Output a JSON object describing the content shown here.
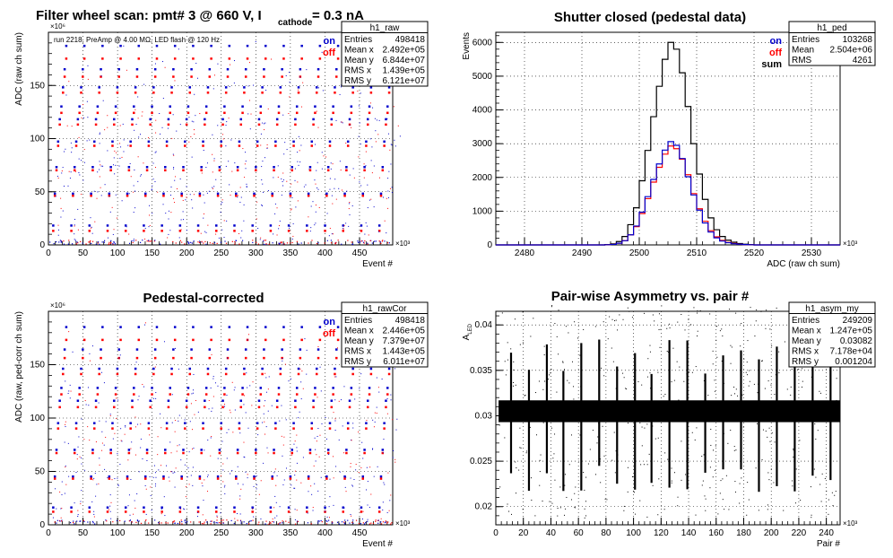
{
  "chart_data": [
    {
      "id": "raw",
      "type": "scatter",
      "title": "Filter wheel scan: pmt#   3 @   660 V, I",
      "title_sub": "cathode",
      "title_tail": " = 0.3 nA",
      "annotation": "run 2218, PreAmp @ 4.00 MΩ, LED flash @  120 Hz",
      "xlabel": "Event #",
      "ylabel": "ADC (raw ch sum)",
      "x_exponent": "×10³",
      "y_exponent": "×10⁶",
      "xlim": [
        0,
        498
      ],
      "ylim": [
        0,
        200
      ],
      "xticks": [
        0,
        50,
        100,
        150,
        200,
        250,
        300,
        350,
        400,
        450
      ],
      "yticks": [
        0,
        50,
        100,
        150
      ],
      "grid": true,
      "legend": [
        {
          "label": "on",
          "color": "#0000cc"
        },
        {
          "label": "off",
          "color": "#ff0000"
        }
      ],
      "stats_box": {
        "name": "h1_raw",
        "rows": [
          [
            "Entries",
            "498418"
          ],
          [
            "Mean x",
            "2.492e+05"
          ],
          [
            "Mean y",
            "6.844e+07"
          ],
          [
            "RMS x",
            "1.439e+05"
          ],
          [
            "RMS y",
            "6.121e+07"
          ]
        ]
      },
      "levels_on": [
        0,
        18,
        48,
        73,
        97,
        118,
        130,
        148,
        165,
        187
      ],
      "levels_off": [
        0,
        13,
        46,
        70,
        93,
        113,
        124,
        143,
        158,
        175
      ]
    },
    {
      "id": "ped",
      "type": "histogram",
      "title": "Shutter closed (pedestal data)",
      "xlabel": "ADC (raw ch sum)",
      "ylabel": "Events",
      "x_exponent": "×10³",
      "xlim": [
        2475,
        2535
      ],
      "ylim": [
        0,
        6300
      ],
      "xticks": [
        2480,
        2490,
        2500,
        2510,
        2520,
        2530
      ],
      "yticks": [
        0,
        1000,
        2000,
        3000,
        4000,
        5000,
        6000
      ],
      "grid": true,
      "legend": [
        {
          "label": "on",
          "color": "#0000cc"
        },
        {
          "label": "off",
          "color": "#ff0000"
        },
        {
          "label": "sum",
          "color": "#000000"
        }
      ],
      "stats_box": {
        "name": "h1_ped",
        "rows": [
          [
            "Entries",
            "103268"
          ],
          [
            "Mean",
            "2.504e+06"
          ],
          [
            "RMS",
            "4261"
          ]
        ]
      },
      "bin_lo": 2490,
      "bin_width": 1,
      "sum": [
        0,
        0,
        0,
        0,
        10,
        30,
        100,
        250,
        600,
        1100,
        1900,
        2800,
        3800,
        4700,
        5500,
        6000,
        5800,
        5100,
        4100,
        3000,
        2100,
        1350,
        800,
        450,
        250,
        140,
        80,
        40,
        20,
        10,
        0
      ],
      "on": [
        0,
        0,
        0,
        0,
        5,
        15,
        50,
        125,
        300,
        560,
        970,
        1430,
        1940,
        2400,
        2810,
        3060,
        2950,
        2560,
        2020,
        1480,
        1030,
        650,
        380,
        210,
        115,
        65,
        35,
        20,
        10,
        5,
        0
      ],
      "off": [
        0,
        0,
        0,
        0,
        5,
        15,
        50,
        125,
        300,
        540,
        930,
        1370,
        1860,
        2300,
        2690,
        2930,
        2850,
        2540,
        2080,
        1520,
        1070,
        700,
        420,
        240,
        135,
        75,
        45,
        20,
        10,
        5,
        0
      ]
    },
    {
      "id": "rawcor",
      "type": "scatter",
      "title": "Pedestal-corrected",
      "xlabel": "Event #",
      "ylabel": "ADC (raw, ped-corr ch sum)",
      "x_exponent": "×10³",
      "y_exponent": "×10⁶",
      "xlim": [
        0,
        498
      ],
      "ylim": [
        0,
        200
      ],
      "xticks": [
        0,
        50,
        100,
        150,
        200,
        250,
        300,
        350,
        400,
        450
      ],
      "yticks": [
        0,
        50,
        100,
        150
      ],
      "grid": true,
      "legend": [
        {
          "label": "on",
          "color": "#0000cc"
        },
        {
          "label": "off",
          "color": "#ff0000"
        }
      ],
      "stats_box": {
        "name": "h1_rawCor",
        "rows": [
          [
            "Entries",
            "498418"
          ],
          [
            "Mean x",
            "2.446e+05"
          ],
          [
            "Mean y",
            "7.379e+07"
          ],
          [
            "RMS x",
            "1.443e+05"
          ],
          [
            "RMS y",
            "6.011e+07"
          ]
        ]
      },
      "levels_on": [
        0,
        16,
        45,
        70,
        95,
        116,
        128,
        146,
        164,
        185
      ],
      "levels_off": [
        0,
        12,
        43,
        67,
        90,
        110,
        122,
        141,
        156,
        173
      ]
    },
    {
      "id": "asym",
      "type": "scatter",
      "title": "Pair-wise Asymmetry vs. pair #",
      "xlabel": "Pair #",
      "ylabel": "A_LED",
      "x_exponent": "×10³",
      "xlim": [
        0,
        250
      ],
      "ylim": [
        0.018,
        0.0415
      ],
      "xticks": [
        0,
        20,
        40,
        60,
        80,
        100,
        120,
        140,
        160,
        180,
        200,
        220,
        240
      ],
      "yticks": [
        0.02,
        0.025,
        0.03,
        0.035,
        0.04
      ],
      "ytick_labels": [
        "0.02",
        "0.025",
        "0.03",
        "0.035",
        "0.04"
      ],
      "grid": true,
      "stats_box": {
        "name": "h1_asym_my",
        "rows": [
          [
            "Entries",
            "249209"
          ],
          [
            "Mean x",
            "1.247e+05"
          ],
          [
            "Mean y",
            "0.03082"
          ],
          [
            "RMS x",
            "7.178e+04"
          ],
          [
            "RMS y",
            "0.001204"
          ]
        ]
      },
      "band_center": 0.0305,
      "band_halfwidth": 0.0012,
      "spike_pairs": [
        11,
        24,
        37,
        49,
        62,
        75,
        88,
        101,
        113,
        126,
        139,
        152,
        165,
        178,
        191,
        204,
        217,
        230,
        243
      ]
    }
  ]
}
